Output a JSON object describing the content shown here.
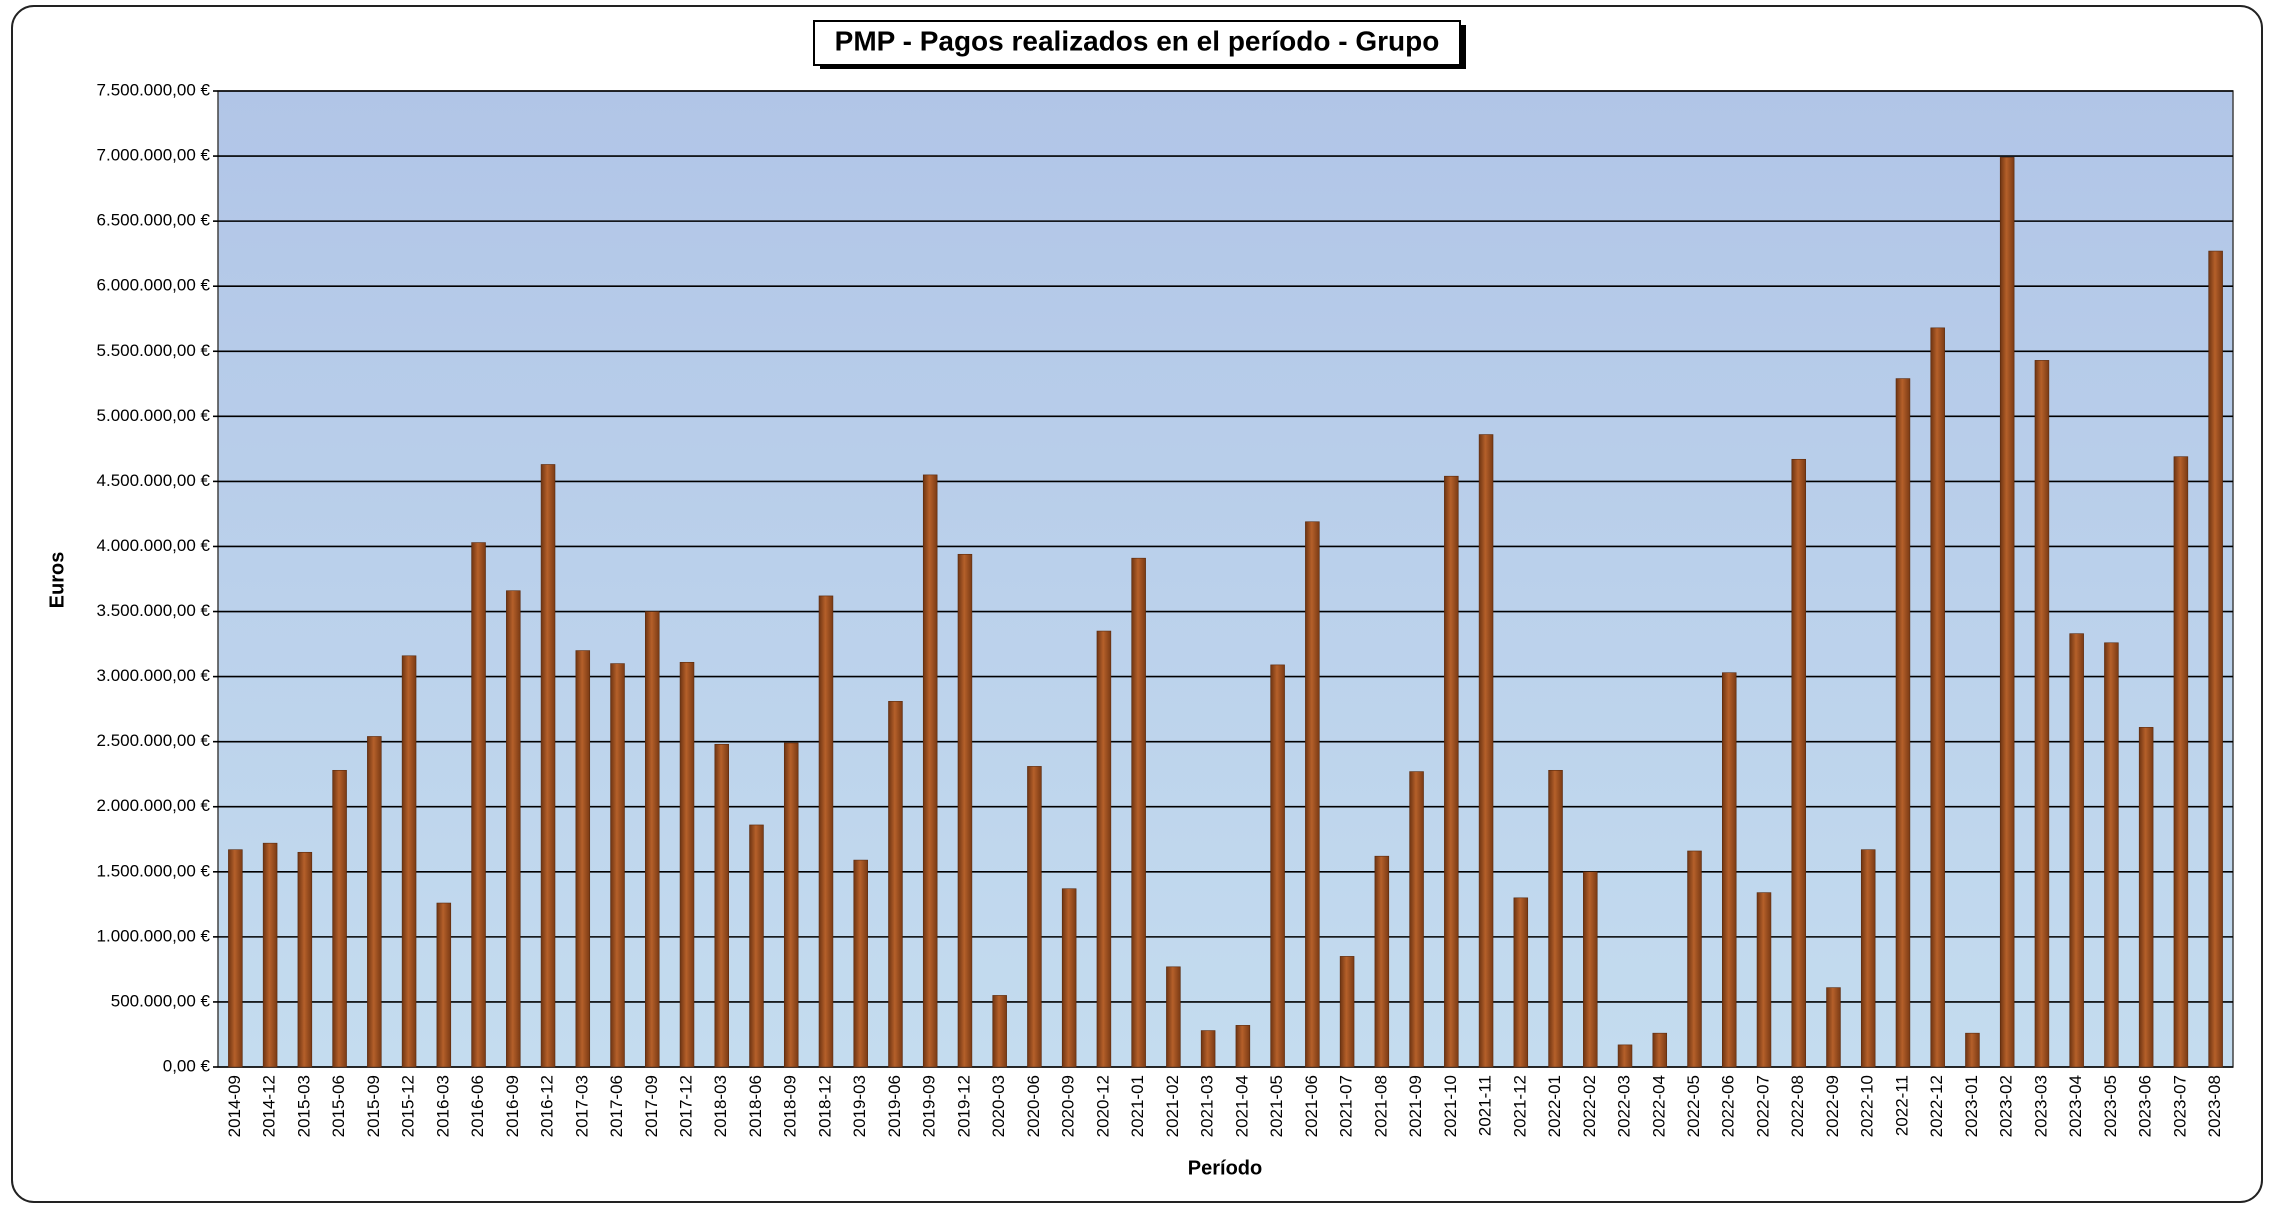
{
  "chart_data": {
    "type": "bar",
    "title": "PMP - Pagos realizados en el período - Grupo",
    "x_label": "Período",
    "y_label": "Euros",
    "categories": [
      "2014-09",
      "2014-12",
      "2015-03",
      "2015-06",
      "2015-09",
      "2015-12",
      "2016-03",
      "2016-06",
      "2016-09",
      "2016-12",
      "2017-03",
      "2017-06",
      "2017-09",
      "2017-12",
      "2018-03",
      "2018-06",
      "2018-09",
      "2018-12",
      "2019-03",
      "2019-06",
      "2019-09",
      "2019-12",
      "2020-03",
      "2020-06",
      "2020-09",
      "2020-12",
      "2021-01",
      "2021-02",
      "2021-03",
      "2021-04",
      "2021-05",
      "2021-06",
      "2021-07",
      "2021-08",
      "2021-09",
      "2021-10",
      "2021-11",
      "2021-12",
      "2022-01",
      "2022-02",
      "2022-03",
      "2022-04",
      "2022-05",
      "2022-06",
      "2022-07",
      "2022-08",
      "2022-09",
      "2022-10",
      "2022-11",
      "2022-12",
      "2023-01",
      "2023-02",
      "2023-03",
      "2023-04",
      "2023-05",
      "2023-06",
      "2023-07",
      "2023-08"
    ],
    "values": [
      1670000,
      1720000,
      1650000,
      2280000,
      2540000,
      3160000,
      1260000,
      4030000,
      3660000,
      4630000,
      3200000,
      3100000,
      3500000,
      3110000,
      2480000,
      1860000,
      2490000,
      3620000,
      1590000,
      2810000,
      4550000,
      3940000,
      550000,
      2310000,
      1370000,
      3350000,
      3910000,
      770000,
      280000,
      320000,
      3090000,
      4190000,
      850000,
      1620000,
      2270000,
      4540000,
      4860000,
      1300000,
      2280000,
      1500000,
      170000,
      260000,
      1660000,
      3030000,
      1340000,
      4670000,
      610000,
      1670000,
      5290000,
      5680000,
      260000,
      6990000,
      5430000,
      3330000,
      3260000,
      2610000,
      4690000,
      6270000
    ],
    "color": "#b5602a",
    "ylim": [
      0,
      7500000
    ],
    "yticks": [
      {
        "value": 0,
        "label": "0,00 €"
      },
      {
        "value": 500000,
        "label": "500.000,00 €"
      },
      {
        "value": 1000000,
        "label": "1.000.000,00 €"
      },
      {
        "value": 1500000,
        "label": "1.500.000,00 €"
      },
      {
        "value": 2000000,
        "label": "2.000.000,00 €"
      },
      {
        "value": 2500000,
        "label": "2.500.000,00 €"
      },
      {
        "value": 3000000,
        "label": "3.000.000,00 €"
      },
      {
        "value": 3500000,
        "label": "3.500.000,00 €"
      },
      {
        "value": 4000000,
        "label": "4.000.000,00 €"
      },
      {
        "value": 4500000,
        "label": "4.500.000,00 €"
      },
      {
        "value": 5000000,
        "label": "5.000.000,00 €"
      },
      {
        "value": 5500000,
        "label": "5.500.000,00 €"
      },
      {
        "value": 6000000,
        "label": "6.000.000,00 €"
      },
      {
        "value": 6500000,
        "label": "6.500.000,00 €"
      },
      {
        "value": 7000000,
        "label": "7.000.000,00 €"
      },
      {
        "value": 7500000,
        "label": "7.500.000,00 €"
      }
    ],
    "grid": true
  }
}
